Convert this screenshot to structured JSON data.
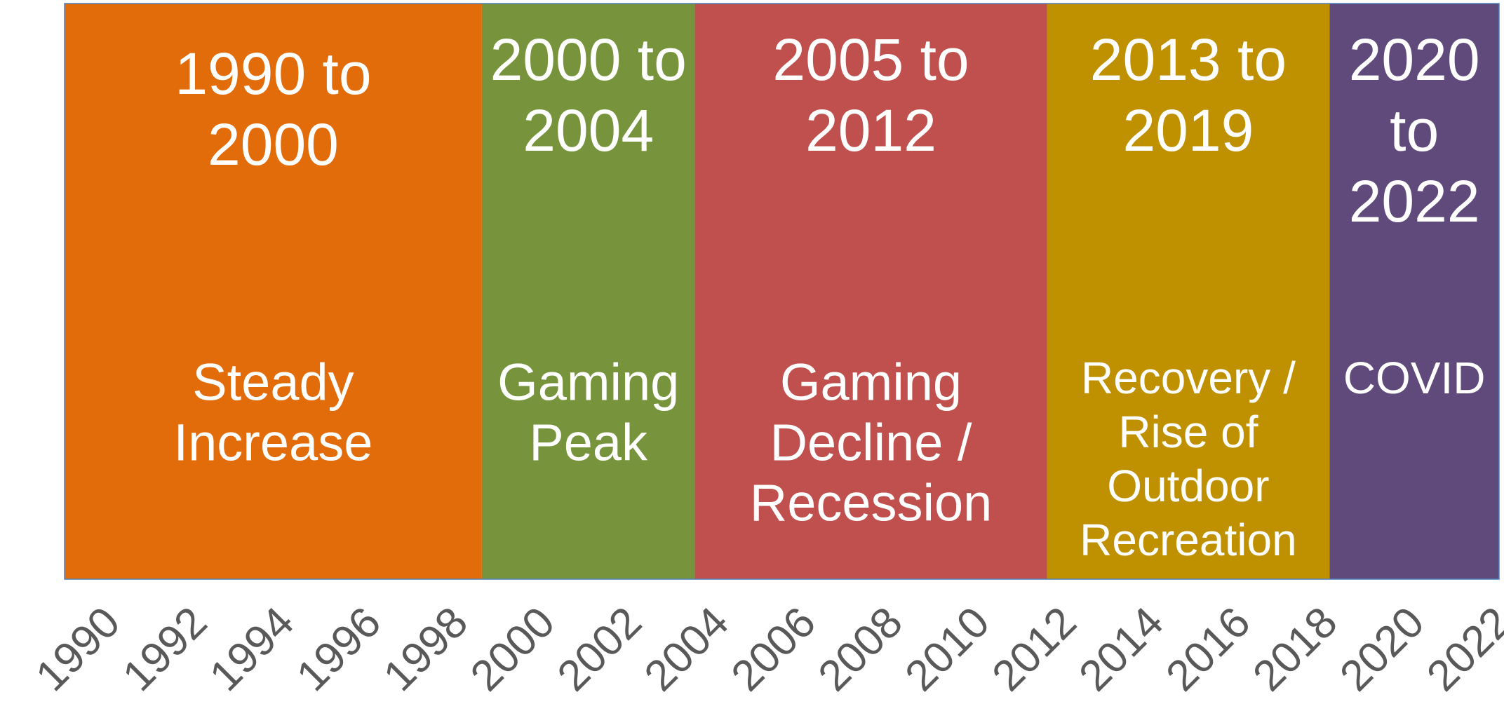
{
  "chart_data": {
    "type": "timeline",
    "xlim": [
      1989.5,
      2022.5
    ],
    "xticks": [
      1990,
      1992,
      1994,
      1996,
      1998,
      2000,
      2002,
      2004,
      2006,
      2008,
      2010,
      2012,
      2014,
      2016,
      2018,
      2020,
      2022
    ],
    "periods": [
      {
        "start": 1989.5,
        "end": 1999.1,
        "color": "#e36c0a",
        "title_lines": [
          "1990 to",
          "2000"
        ],
        "description_lines": [
          "Steady",
          "Increase"
        ]
      },
      {
        "start": 1999.1,
        "end": 2004.0,
        "color": "#77933c",
        "title_lines": [
          "2000 to",
          "2004"
        ],
        "description_lines": [
          "Gaming",
          "Peak"
        ]
      },
      {
        "start": 2004.0,
        "end": 2012.1,
        "color": "#c0504d",
        "title_lines": [
          "2005 to",
          "2012"
        ],
        "description_lines": [
          "Gaming",
          "Decline /",
          "Recession"
        ]
      },
      {
        "start": 2012.1,
        "end": 2018.6,
        "color": "#bf9000",
        "title_lines": [
          "2013 to",
          "2019"
        ],
        "description_lines": [
          "Recovery /",
          "Rise of",
          "Outdoor",
          "Recreation"
        ]
      },
      {
        "start": 2018.6,
        "end": 2022.5,
        "color": "#604a7b",
        "title_lines": [
          "2020",
          "to",
          "2022"
        ],
        "description_lines": [
          "COVID"
        ]
      }
    ]
  }
}
